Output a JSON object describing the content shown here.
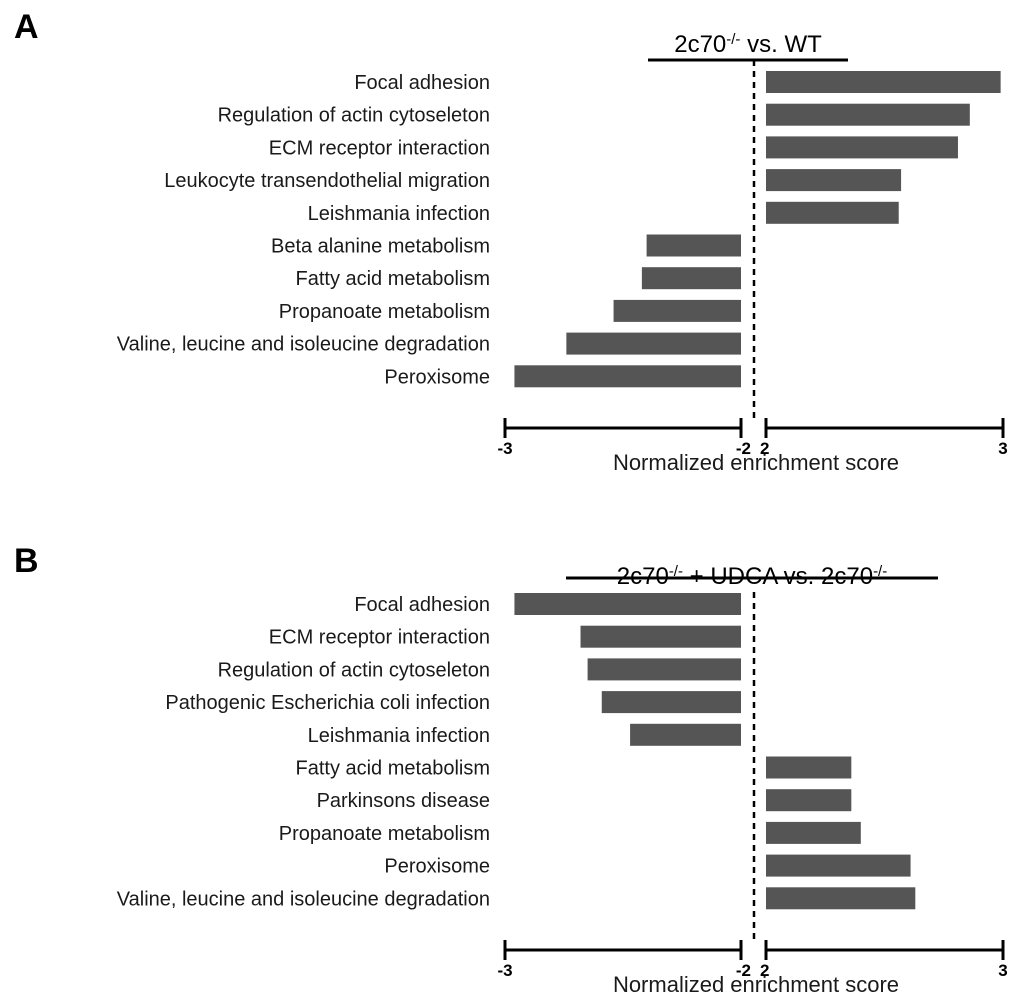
{
  "chart_data": [
    {
      "type": "bar",
      "panel": "A",
      "title": {
        "prefix": "2c70",
        "sup1": "-/-",
        "suffix": " vs. WT",
        "sup2": "",
        "tail": ""
      },
      "xlabel": "Normalized enrichment score",
      "axis_left": {
        "range": [
          -3,
          -2
        ],
        "ticks": [
          "-3",
          "-2"
        ]
      },
      "axis_right": {
        "range": [
          2,
          3
        ],
        "ticks": [
          "2",
          "3"
        ]
      },
      "categories": [
        "Focal adhesion",
        "Regulation of actin cytoseleton",
        "ECM receptor interaction",
        "Leukocyte transendothelial migration",
        "Leishmania infection",
        "Beta alanine metabolism",
        "Fatty acid metabolism",
        "Propanoate metabolism",
        "Valine, leucine and isoleucine degradation",
        "Peroxisome"
      ],
      "values": [
        2.99,
        2.86,
        2.81,
        2.57,
        2.56,
        -2.4,
        -2.42,
        -2.54,
        -2.74,
        -2.96
      ],
      "color": "#555555"
    },
    {
      "type": "bar",
      "panel": "B",
      "title": {
        "prefix": "2c70",
        "sup1": "-/-",
        "suffix": " + UDCA vs. 2c70",
        "sup2": "-/-",
        "tail": ""
      },
      "xlabel": "Normalized enrichment score",
      "axis_left": {
        "range": [
          -3,
          -2
        ],
        "ticks": [
          "-3",
          "-2"
        ]
      },
      "axis_right": {
        "range": [
          2,
          3
        ],
        "ticks": [
          "2",
          "3"
        ]
      },
      "categories": [
        "Focal adhesion",
        "ECM receptor interaction",
        "Regulation of actin cytoseleton",
        "Pathogenic Escherichia coli infection",
        "Leishmania infection",
        "Fatty acid metabolism",
        "Parkinsons disease",
        "Propanoate metabolism",
        "Peroxisome",
        "Valine, leucine and isoleucine degradation"
      ],
      "values": [
        -2.96,
        -2.68,
        -2.65,
        -2.59,
        -2.47,
        2.36,
        2.36,
        2.4,
        2.61,
        2.63
      ],
      "color": "#555555"
    }
  ]
}
